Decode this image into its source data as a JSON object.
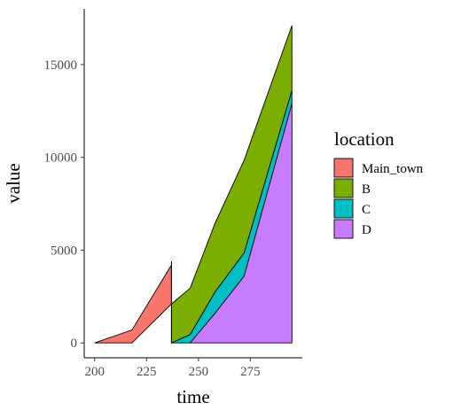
{
  "chart_data": {
    "type": "area",
    "stacked": true,
    "xlabel": "time",
    "ylabel": "value",
    "xlim": [
      195,
      300
    ],
    "ylim": [
      -800,
      18000
    ],
    "x_ticks": [
      200,
      225,
      250,
      275
    ],
    "y_ticks": [
      0,
      5000,
      10000,
      15000
    ],
    "grid": false,
    "legend": {
      "title": "location",
      "position": "right"
    },
    "series": [
      {
        "name": "Main_town",
        "color": "#F8766D",
        "points": [
          [
            200,
            0
          ],
          [
            218,
            700
          ],
          [
            237,
            2100
          ]
        ]
      },
      {
        "name": "B",
        "color": "#7CAE00",
        "points": [
          [
            237,
            2100
          ],
          [
            246,
            2500
          ],
          [
            258,
            3700
          ],
          [
            272,
            5000
          ],
          [
            295,
            3500
          ]
        ]
      },
      {
        "name": "C",
        "color": "#00BFC4",
        "points": [
          [
            237,
            0
          ],
          [
            246,
            450
          ],
          [
            258,
            1150
          ],
          [
            272,
            1250
          ],
          [
            295,
            700
          ]
        ]
      },
      {
        "name": "D",
        "color": "#C77CFF",
        "points": [
          [
            246,
            0
          ],
          [
            258,
            1600
          ],
          [
            272,
            3600
          ],
          [
            295,
            12900
          ]
        ]
      }
    ],
    "annotations": [
      {
        "type": "vline",
        "x": 237,
        "y_from": 0,
        "y_to": 4400
      }
    ]
  }
}
